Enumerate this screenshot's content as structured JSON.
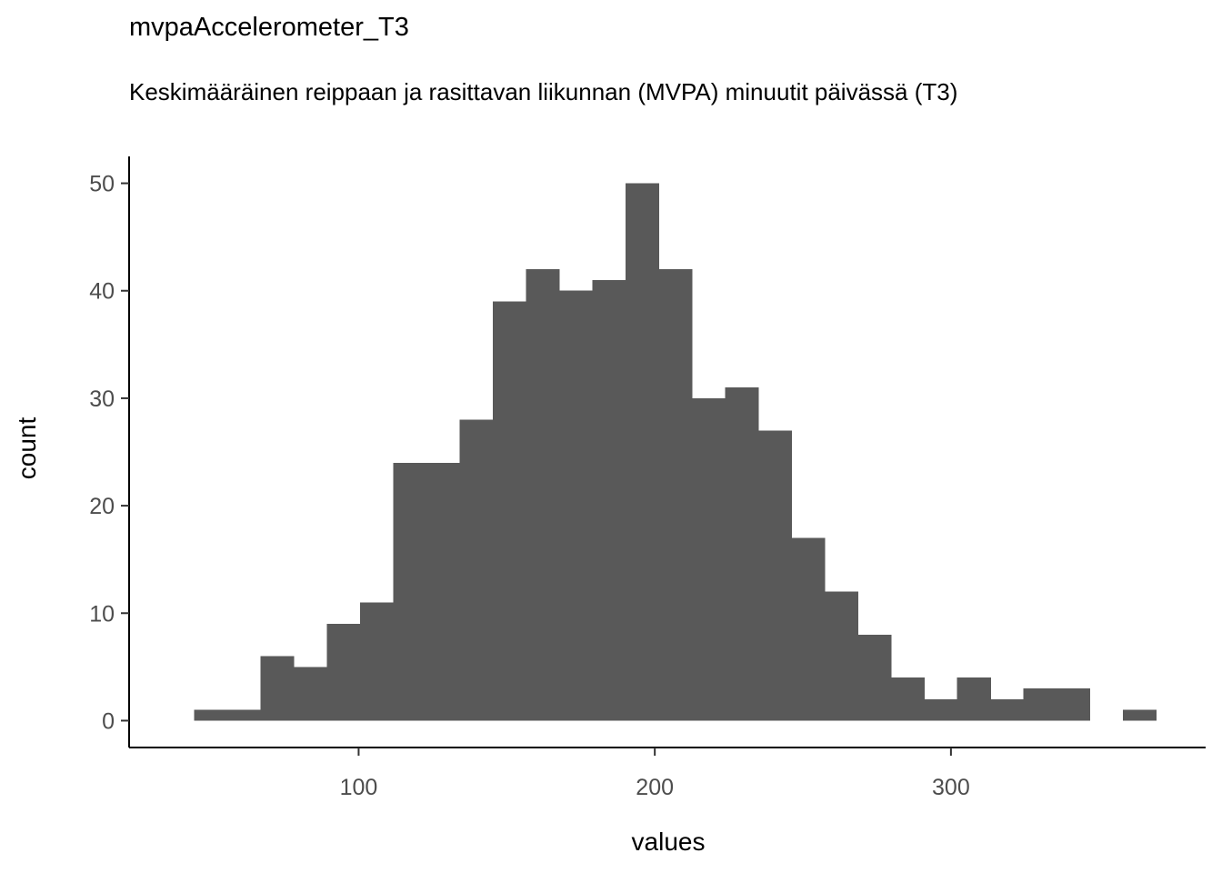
{
  "chart_data": {
    "type": "bar",
    "title": "mvpaAccelerometer_T3",
    "subtitle": "Keskimääräinen reippaan ja rasittavan liikunnan (MVPA) minuutit päivässä (T3)",
    "xlabel": "values",
    "ylabel": "count",
    "xlim": [
      22.5,
      386
    ],
    "ylim": [
      -2.5,
      52.5
    ],
    "x_ticks": [
      100,
      200,
      300
    ],
    "y_ticks": [
      0,
      10,
      20,
      30,
      40,
      50
    ],
    "bin_width": 11.2,
    "bin_centers": [
      50.1,
      61.3,
      72.5,
      83.7,
      94.9,
      106.1,
      117.3,
      128.5,
      139.7,
      150.9,
      162.1,
      173.3,
      184.5,
      195.7,
      206.9,
      218.1,
      229.3,
      240.5,
      251.7,
      262.9,
      274.1,
      285.3,
      296.5,
      307.7,
      318.9,
      330.1,
      341.3,
      352.5,
      363.7
    ],
    "values": [
      1,
      1,
      6,
      5,
      9,
      11,
      24,
      24,
      28,
      39,
      42,
      40,
      41,
      50,
      42,
      30,
      31,
      27,
      17,
      12,
      8,
      4,
      2,
      4,
      2,
      3,
      3,
      0,
      1
    ],
    "bar_color": "#595959",
    "grid": false
  }
}
